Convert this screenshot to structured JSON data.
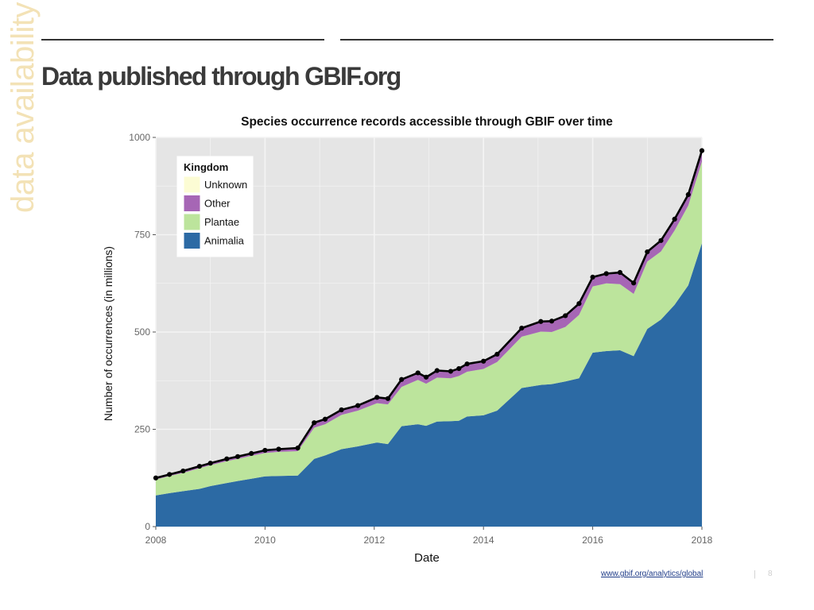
{
  "slide": {
    "side_label": "data availability",
    "title": "Data published through GBIF.org",
    "source_link": "www.gbif.org/analytics/global",
    "page_separator": "|",
    "page_number": "8"
  },
  "colors": {
    "Animalia": "#2c6aa4",
    "Plantae": "#bce49c",
    "Other": "#a666b5",
    "Unknown": "#fcfcd4",
    "total_line": "#000000",
    "panel": "#e5e5e5",
    "grid": "#f4f4f4"
  },
  "chart_data": {
    "type": "area",
    "stacked": true,
    "title": "Species occurrence records accessible through GBIF over time",
    "xlabel": "Date",
    "ylabel": "Number of occurrences (in millions)",
    "xlim": [
      2008,
      2018
    ],
    "ylim": [
      0,
      1000
    ],
    "xticks": [
      "2008",
      "2010",
      "2012",
      "2014",
      "2016",
      "2018"
    ],
    "yticks": [
      "0",
      "250",
      "500",
      "750",
      "1000"
    ],
    "grid": true,
    "legend": {
      "title": "Kingdom",
      "position": "top-left",
      "entries": [
        "Unknown",
        "Other",
        "Plantae",
        "Animalia"
      ]
    },
    "x": [
      2008.0,
      2008.25,
      2008.5,
      2008.8,
      2009.0,
      2009.3,
      2009.5,
      2009.75,
      2010.0,
      2010.25,
      2010.6,
      2010.9,
      2011.1,
      2011.4,
      2011.7,
      2012.05,
      2012.25,
      2012.5,
      2012.8,
      2012.95,
      2013.15,
      2013.4,
      2013.55,
      2013.7,
      2014.0,
      2014.25,
      2014.7,
      2015.05,
      2015.25,
      2015.5,
      2015.75,
      2016.0,
      2016.25,
      2016.5,
      2016.75,
      2017.0,
      2017.25,
      2017.5,
      2017.75,
      2018.0
    ],
    "series": [
      {
        "name": "Animalia",
        "values": [
          80,
          86,
          91,
          97,
          104,
          112,
          117,
          123,
          129,
          130,
          131,
          174,
          183,
          199,
          206,
          216,
          212,
          258,
          263,
          259,
          270,
          271,
          272,
          283,
          286,
          298,
          356,
          364,
          366,
          373,
          381,
          447,
          451,
          453,
          438,
          508,
          532,
          570,
          620,
          728
        ]
      },
      {
        "name": "Plantae",
        "values": [
          41,
          44,
          47,
          53,
          54,
          56,
          57,
          59,
          60,
          62,
          63,
          80,
          80,
          88,
          92,
          101,
          102,
          101,
          114,
          108,
          113,
          110,
          115,
          115,
          119,
          125,
          132,
          137,
          134,
          140,
          163,
          170,
          174,
          170,
          160,
          173,
          175,
          191,
          205,
          210
        ]
      },
      {
        "name": "Other",
        "values": [
          3,
          3,
          4,
          4,
          4,
          5,
          5,
          5,
          6,
          6,
          7,
          12,
          12,
          12,
          12,
          13,
          13,
          17,
          16,
          15,
          16,
          16,
          17,
          18,
          18,
          18,
          20,
          24,
          26,
          27,
          27,
          22,
          23,
          28,
          26,
          22,
          25,
          26,
          25,
          25
        ]
      },
      {
        "name": "Unknown",
        "values": [
          1,
          1,
          1,
          1,
          1,
          1,
          1,
          1,
          1,
          1,
          1,
          1,
          1,
          1,
          1,
          2,
          2,
          2,
          2,
          2,
          2,
          2,
          2,
          2,
          2,
          2,
          2,
          2,
          2,
          2,
          2,
          2,
          2,
          2,
          2,
          3,
          3,
          3,
          3,
          3
        ]
      }
    ],
    "total": [
      125,
      134,
      143,
      155,
      163,
      174,
      180,
      188,
      196,
      199,
      202,
      267,
      276,
      300,
      311,
      332,
      329,
      378,
      395,
      384,
      401,
      399,
      406,
      418,
      425,
      443,
      510,
      527,
      528,
      542,
      573,
      641,
      650,
      653,
      626,
      706,
      735,
      790,
      853,
      966
    ]
  }
}
